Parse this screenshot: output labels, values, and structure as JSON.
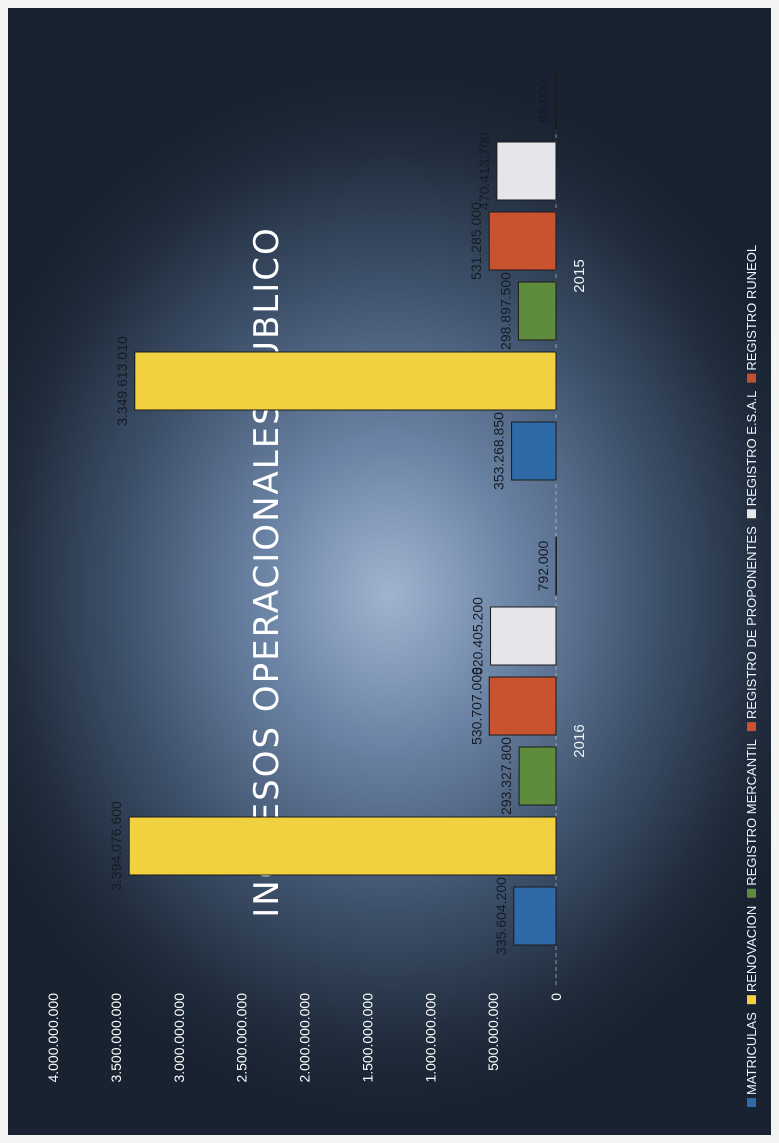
{
  "chart_data": {
    "type": "bar",
    "orientation": "rotated-90-ccw",
    "title": "INGRESOS OPERACIONALES PUBLICO",
    "categories": [
      "2016",
      "2015"
    ],
    "series": [
      {
        "name": "MATRICULAS",
        "color": "#2e6aa8",
        "values": [
          335604200,
          353268850
        ],
        "labels": [
          "335.604.200",
          "353.268.850"
        ]
      },
      {
        "name": "RENOVACION",
        "color": "#f2d140",
        "values": [
          3394076600,
          3349613010
        ],
        "labels": [
          "3.394.076.600",
          "3.349.613.010"
        ]
      },
      {
        "name": "REGISTRO MERCANTIL",
        "color": "#5e8c3c",
        "values": [
          293327800,
          298897500
        ],
        "labels": [
          "293.327.800",
          "298.897.500"
        ]
      },
      {
        "name": "REGISTRO DE PROPONENTES",
        "color": "#c8532e",
        "values": [
          530707000,
          531285000
        ],
        "labels": [
          "530.707.000",
          "531.285.000"
        ]
      },
      {
        "name": "REGISTRO E.S.A.L",
        "color": "#e6e6ea",
        "values": [
          520405200,
          470413700
        ],
        "labels": [
          "520.405.200",
          "470.413.700"
        ]
      },
      {
        "name": "REGISTRO RUNEOL",
        "color": "#c2502e",
        "values": [
          792000,
          68000
        ],
        "labels": [
          "792.000",
          "68.000"
        ]
      }
    ],
    "y_ticks": [
      "0",
      "500.000.000",
      "1.000.000.000",
      "1.500.000.000",
      "2.000.000.000",
      "2.500.000.000",
      "3.000.000.000",
      "3.500.000.000",
      "4.000.000.000"
    ],
    "ylim": [
      0,
      4000000000
    ],
    "grid": false,
    "legend": "bottom"
  }
}
